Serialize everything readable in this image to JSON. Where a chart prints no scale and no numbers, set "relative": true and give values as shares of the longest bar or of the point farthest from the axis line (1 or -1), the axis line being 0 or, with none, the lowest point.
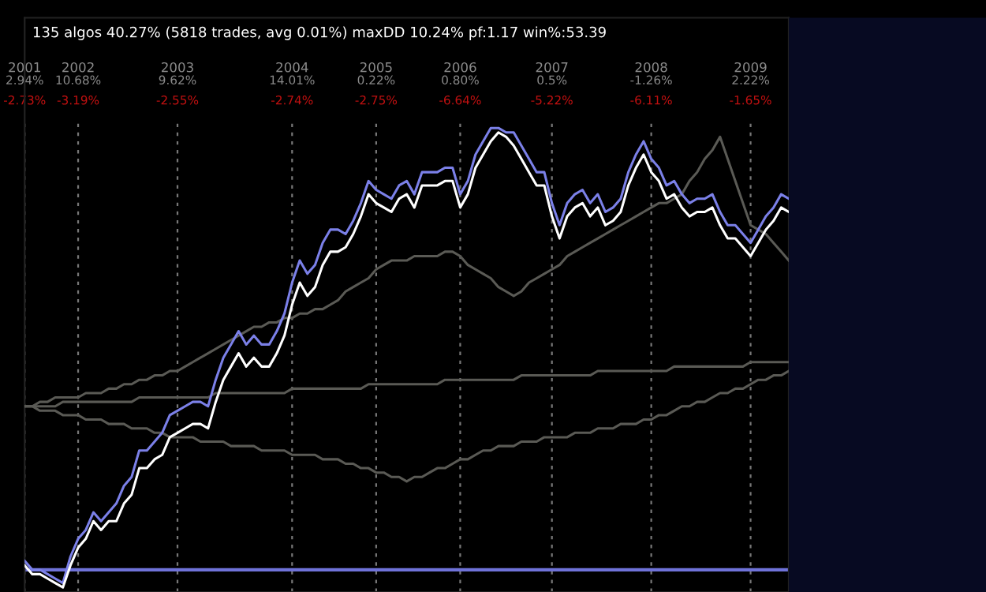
{
  "chart_data": {
    "type": "line",
    "relative": true,
    "title": "135 algos 40.27% (5818 trades, avg 0.01%) maxDD 10.24% pf:1.17 win%:53.39",
    "categories": [
      "2001",
      null,
      null,
      null,
      null,
      null,
      null,
      "2002",
      null,
      null,
      null,
      null,
      null,
      null,
      null,
      null,
      null,
      null,
      null,
      null,
      "2003",
      null,
      null,
      null,
      null,
      null,
      null,
      null,
      null,
      null,
      null,
      null,
      null,
      null,
      null,
      "2004",
      null,
      null,
      null,
      null,
      null,
      null,
      null,
      null,
      null,
      null,
      "2005",
      null,
      null,
      null,
      null,
      null,
      null,
      null,
      null,
      null,
      null,
      "2006",
      null,
      null,
      null,
      null,
      null,
      null,
      null,
      null,
      null,
      null,
      null,
      "2007",
      null,
      null,
      null,
      null,
      null,
      null,
      null,
      null,
      null,
      null,
      null,
      null,
      "2008",
      null,
      null,
      null,
      null,
      null,
      null,
      null,
      null,
      null,
      null,
      null,
      null,
      "2009",
      null,
      null,
      null,
      null,
      null
    ],
    "grid": "x",
    "line_style": "solid",
    "marker": "none",
    "annotations": [
      "2.94%",
      "-2.73%",
      "10.68%",
      "-3.19%",
      "9.62%",
      "-2.55%",
      "14.01%",
      "-2.74%",
      "0.22%",
      "-2.75%",
      "0.80%",
      "-6.64%",
      "0.5%",
      "-5.22%",
      "-1.26%",
      "-6.11%",
      "2.22%",
      "-1.65%"
    ],
    "ref_lines": [
      {
        "axis": "y",
        "value": 0,
        "color": "#6f72d8"
      }
    ],
    "series": [
      {
        "color": "#5a5a55",
        "values": [
          0.37,
          0.37,
          0.38,
          0.38,
          0.39,
          0.39,
          0.39,
          0.39,
          0.4,
          0.4,
          0.4,
          0.41,
          0.41,
          0.42,
          0.42,
          0.43,
          0.43,
          0.44,
          0.44,
          0.45,
          0.45,
          0.46,
          0.47,
          0.48,
          0.49,
          0.5,
          0.51,
          0.52,
          0.53,
          0.54,
          0.55,
          0.55,
          0.56,
          0.56,
          0.57,
          0.57,
          0.58,
          0.58,
          0.59,
          0.59,
          0.6,
          0.61,
          0.63,
          0.64,
          0.65,
          0.66,
          0.68,
          0.69,
          0.7,
          0.7,
          0.7,
          0.71,
          0.71,
          0.71,
          0.71,
          0.72,
          0.72,
          0.71,
          0.69,
          0.68,
          0.67,
          0.66,
          0.64,
          0.63,
          0.62,
          0.63,
          0.65,
          0.66,
          0.67,
          0.68,
          0.69,
          0.71,
          0.72,
          0.73,
          0.74,
          0.75,
          0.76,
          0.77,
          0.78,
          0.79,
          0.8,
          0.81,
          0.82,
          0.83,
          0.83,
          0.84,
          0.85,
          0.88,
          0.9,
          0.93,
          0.95,
          0.98,
          0.93,
          0.88,
          0.83,
          0.78,
          0.77,
          0.76,
          0.74,
          0.72,
          0.7
        ]
      },
      {
        "color": "#5a5a55",
        "values": [
          0.37,
          0.37,
          0.36,
          0.36,
          0.36,
          0.35,
          0.35,
          0.35,
          0.34,
          0.34,
          0.34,
          0.33,
          0.33,
          0.33,
          0.32,
          0.32,
          0.32,
          0.31,
          0.31,
          0.3,
          0.3,
          0.3,
          0.3,
          0.29,
          0.29,
          0.29,
          0.29,
          0.28,
          0.28,
          0.28,
          0.28,
          0.27,
          0.27,
          0.27,
          0.27,
          0.26,
          0.26,
          0.26,
          0.26,
          0.25,
          0.25,
          0.25,
          0.24,
          0.24,
          0.23,
          0.23,
          0.22,
          0.22,
          0.21,
          0.21,
          0.2,
          0.21,
          0.21,
          0.22,
          0.23,
          0.23,
          0.24,
          0.25,
          0.25,
          0.26,
          0.27,
          0.27,
          0.28,
          0.28,
          0.28,
          0.29,
          0.29,
          0.29,
          0.3,
          0.3,
          0.3,
          0.3,
          0.31,
          0.31,
          0.31,
          0.32,
          0.32,
          0.32,
          0.33,
          0.33,
          0.33,
          0.34,
          0.34,
          0.35,
          0.35,
          0.36,
          0.37,
          0.37,
          0.38,
          0.38,
          0.39,
          0.4,
          0.4,
          0.41,
          0.41,
          0.42,
          0.43,
          0.43,
          0.44,
          0.44,
          0.45
        ]
      },
      {
        "color": "#5a5a55",
        "values": [
          0.37,
          0.37,
          0.37,
          0.37,
          0.37,
          0.38,
          0.38,
          0.38,
          0.38,
          0.38,
          0.38,
          0.38,
          0.38,
          0.38,
          0.38,
          0.39,
          0.39,
          0.39,
          0.39,
          0.39,
          0.39,
          0.39,
          0.39,
          0.39,
          0.39,
          0.4,
          0.4,
          0.4,
          0.4,
          0.4,
          0.4,
          0.4,
          0.4,
          0.4,
          0.4,
          0.41,
          0.41,
          0.41,
          0.41,
          0.41,
          0.41,
          0.41,
          0.41,
          0.41,
          0.41,
          0.42,
          0.42,
          0.42,
          0.42,
          0.42,
          0.42,
          0.42,
          0.42,
          0.42,
          0.42,
          0.43,
          0.43,
          0.43,
          0.43,
          0.43,
          0.43,
          0.43,
          0.43,
          0.43,
          0.43,
          0.44,
          0.44,
          0.44,
          0.44,
          0.44,
          0.44,
          0.44,
          0.44,
          0.44,
          0.44,
          0.45,
          0.45,
          0.45,
          0.45,
          0.45,
          0.45,
          0.45,
          0.45,
          0.45,
          0.45,
          0.46,
          0.46,
          0.46,
          0.46,
          0.46,
          0.46,
          0.46,
          0.46,
          0.46,
          0.46,
          0.47,
          0.47,
          0.47,
          0.47,
          0.47,
          0.47
        ]
      },
      {
        "color": "#7b80e8",
        "values": [
          0.02,
          0,
          0,
          -0.01,
          -0.02,
          -0.03,
          0.03,
          0.07,
          0.09,
          0.13,
          0.11,
          0.13,
          0.15,
          0.19,
          0.21,
          0.27,
          0.27,
          0.29,
          0.31,
          0.35,
          0.36,
          0.37,
          0.38,
          0.38,
          0.37,
          0.43,
          0.48,
          0.51,
          0.54,
          0.51,
          0.53,
          0.51,
          0.51,
          0.54,
          0.58,
          0.65,
          0.7,
          0.67,
          0.69,
          0.74,
          0.77,
          0.77,
          0.76,
          0.79,
          0.83,
          0.88,
          0.86,
          0.85,
          0.84,
          0.87,
          0.88,
          0.85,
          0.9,
          0.9,
          0.9,
          0.91,
          0.91,
          0.85,
          0.88,
          0.94,
          0.97,
          1,
          1,
          0.99,
          0.99,
          0.96,
          0.93,
          0.9,
          0.9,
          0.83,
          0.78,
          0.83,
          0.85,
          0.86,
          0.83,
          0.85,
          0.81,
          0.82,
          0.84,
          0.9,
          0.94,
          0.97,
          0.93,
          0.91,
          0.87,
          0.88,
          0.85,
          0.83,
          0.84,
          0.84,
          0.85,
          0.81,
          0.78,
          0.78,
          0.76,
          0.74,
          0.77,
          0.8,
          0.82,
          0.85,
          0.84
        ]
      },
      {
        "color": "#ffffff",
        "values": [
          0.01,
          -0.01,
          -0.01,
          -0.02,
          -0.03,
          -0.04,
          0.01,
          0.05,
          0.07,
          0.11,
          0.09,
          0.11,
          0.11,
          0.15,
          0.17,
          0.23,
          0.23,
          0.25,
          0.26,
          0.3,
          0.31,
          0.32,
          0.33,
          0.33,
          0.32,
          0.38,
          0.43,
          0.46,
          0.49,
          0.46,
          0.48,
          0.46,
          0.46,
          0.49,
          0.53,
          0.6,
          0.65,
          0.62,
          0.64,
          0.69,
          0.72,
          0.72,
          0.73,
          0.76,
          0.8,
          0.85,
          0.83,
          0.82,
          0.81,
          0.84,
          0.85,
          0.82,
          0.87,
          0.87,
          0.87,
          0.88,
          0.88,
          0.82,
          0.85,
          0.91,
          0.94,
          0.97,
          0.99,
          0.98,
          0.96,
          0.93,
          0.9,
          0.87,
          0.87,
          0.8,
          0.75,
          0.8,
          0.82,
          0.83,
          0.8,
          0.82,
          0.78,
          0.79,
          0.81,
          0.87,
          0.91,
          0.94,
          0.9,
          0.88,
          0.84,
          0.85,
          0.82,
          0.8,
          0.81,
          0.81,
          0.82,
          0.78,
          0.75,
          0.75,
          0.73,
          0.71,
          0.74,
          0.77,
          0.79,
          0.82,
          0.81
        ]
      }
    ]
  }
}
